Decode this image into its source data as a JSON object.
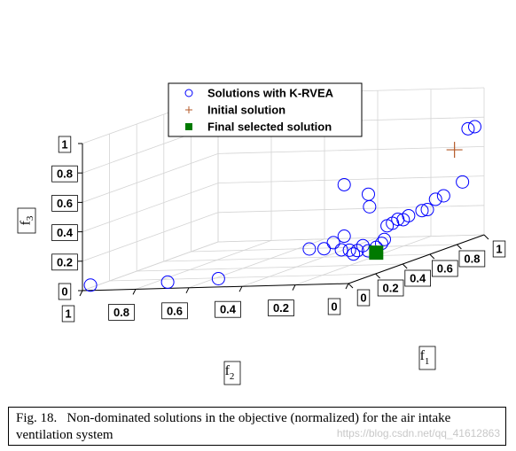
{
  "chart_data": {
    "type": "scatter3d",
    "axes": {
      "f1": {
        "label": "f",
        "subscript": "1",
        "ticks": [
          "0",
          "0.2",
          "0.4",
          "0.6",
          "0.8",
          "1"
        ]
      },
      "f2": {
        "label": "f",
        "subscript": "2",
        "ticks": [
          "0",
          "0.2",
          "0.4",
          "0.6",
          "0.8",
          "1"
        ]
      },
      "f3": {
        "label": "f",
        "subscript": "3",
        "ticks": [
          "0",
          "0.2",
          "0.4",
          "0.6",
          "0.8",
          "1"
        ]
      }
    },
    "grid": true,
    "legend_position": "top-center",
    "legend": [
      {
        "label": "Solutions with K-RVEA",
        "marker": "circle",
        "color": "#0000ff"
      },
      {
        "label": "Initial solution",
        "marker": "plus",
        "color": "#b45a28"
      },
      {
        "label": "Final selected solution",
        "marker": "square",
        "color": "#007a00"
      }
    ],
    "series": [
      {
        "name": "Solutions with K-RVEA",
        "points": [
          [
            0.02,
            0.98,
            0.03
          ],
          [
            0.04,
            0.7,
            0.03
          ],
          [
            0.12,
            0.55,
            0.02
          ],
          [
            0.4,
            0.22,
            0.55
          ],
          [
            0.5,
            0.18,
            0.45
          ],
          [
            0.45,
            0.15,
            0.38
          ],
          [
            0.3,
            0.3,
            0.15
          ],
          [
            0.33,
            0.26,
            0.14
          ],
          [
            0.36,
            0.24,
            0.17
          ],
          [
            0.4,
            0.22,
            0.2
          ],
          [
            0.36,
            0.21,
            0.12
          ],
          [
            0.38,
            0.19,
            0.11
          ],
          [
            0.4,
            0.17,
            0.1
          ],
          [
            0.44,
            0.17,
            0.12
          ],
          [
            0.42,
            0.14,
            0.09
          ],
          [
            0.46,
            0.13,
            0.1
          ],
          [
            0.48,
            0.12,
            0.12
          ],
          [
            0.5,
            0.12,
            0.14
          ],
          [
            0.54,
            0.13,
            0.22
          ],
          [
            0.56,
            0.12,
            0.23
          ],
          [
            0.58,
            0.11,
            0.25
          ],
          [
            0.6,
            0.1,
            0.24
          ],
          [
            0.62,
            0.09,
            0.26
          ],
          [
            0.66,
            0.06,
            0.28
          ],
          [
            0.68,
            0.05,
            0.28
          ],
          [
            0.74,
            0.05,
            0.33
          ],
          [
            0.78,
            0.04,
            0.34
          ],
          [
            0.88,
            0.02,
            0.4
          ],
          [
            0.98,
            0.05,
            0.73
          ],
          [
            0.99,
            0.03,
            0.74
          ],
          [
            0.39,
            0.18,
            0.08
          ]
        ]
      },
      {
        "name": "Initial solution",
        "points": [
          [
            0.88,
            0.05,
            0.62
          ]
        ]
      },
      {
        "name": "Final selected solution",
        "points": [
          [
            0.44,
            0.12,
            0.07
          ]
        ]
      }
    ]
  },
  "caption": {
    "label": "Fig. 18.",
    "text": "Non-dominated solutions in the objective (normalized) for the air intake ventilation system"
  },
  "watermark": "https://blog.csdn.net/qq_41612863"
}
